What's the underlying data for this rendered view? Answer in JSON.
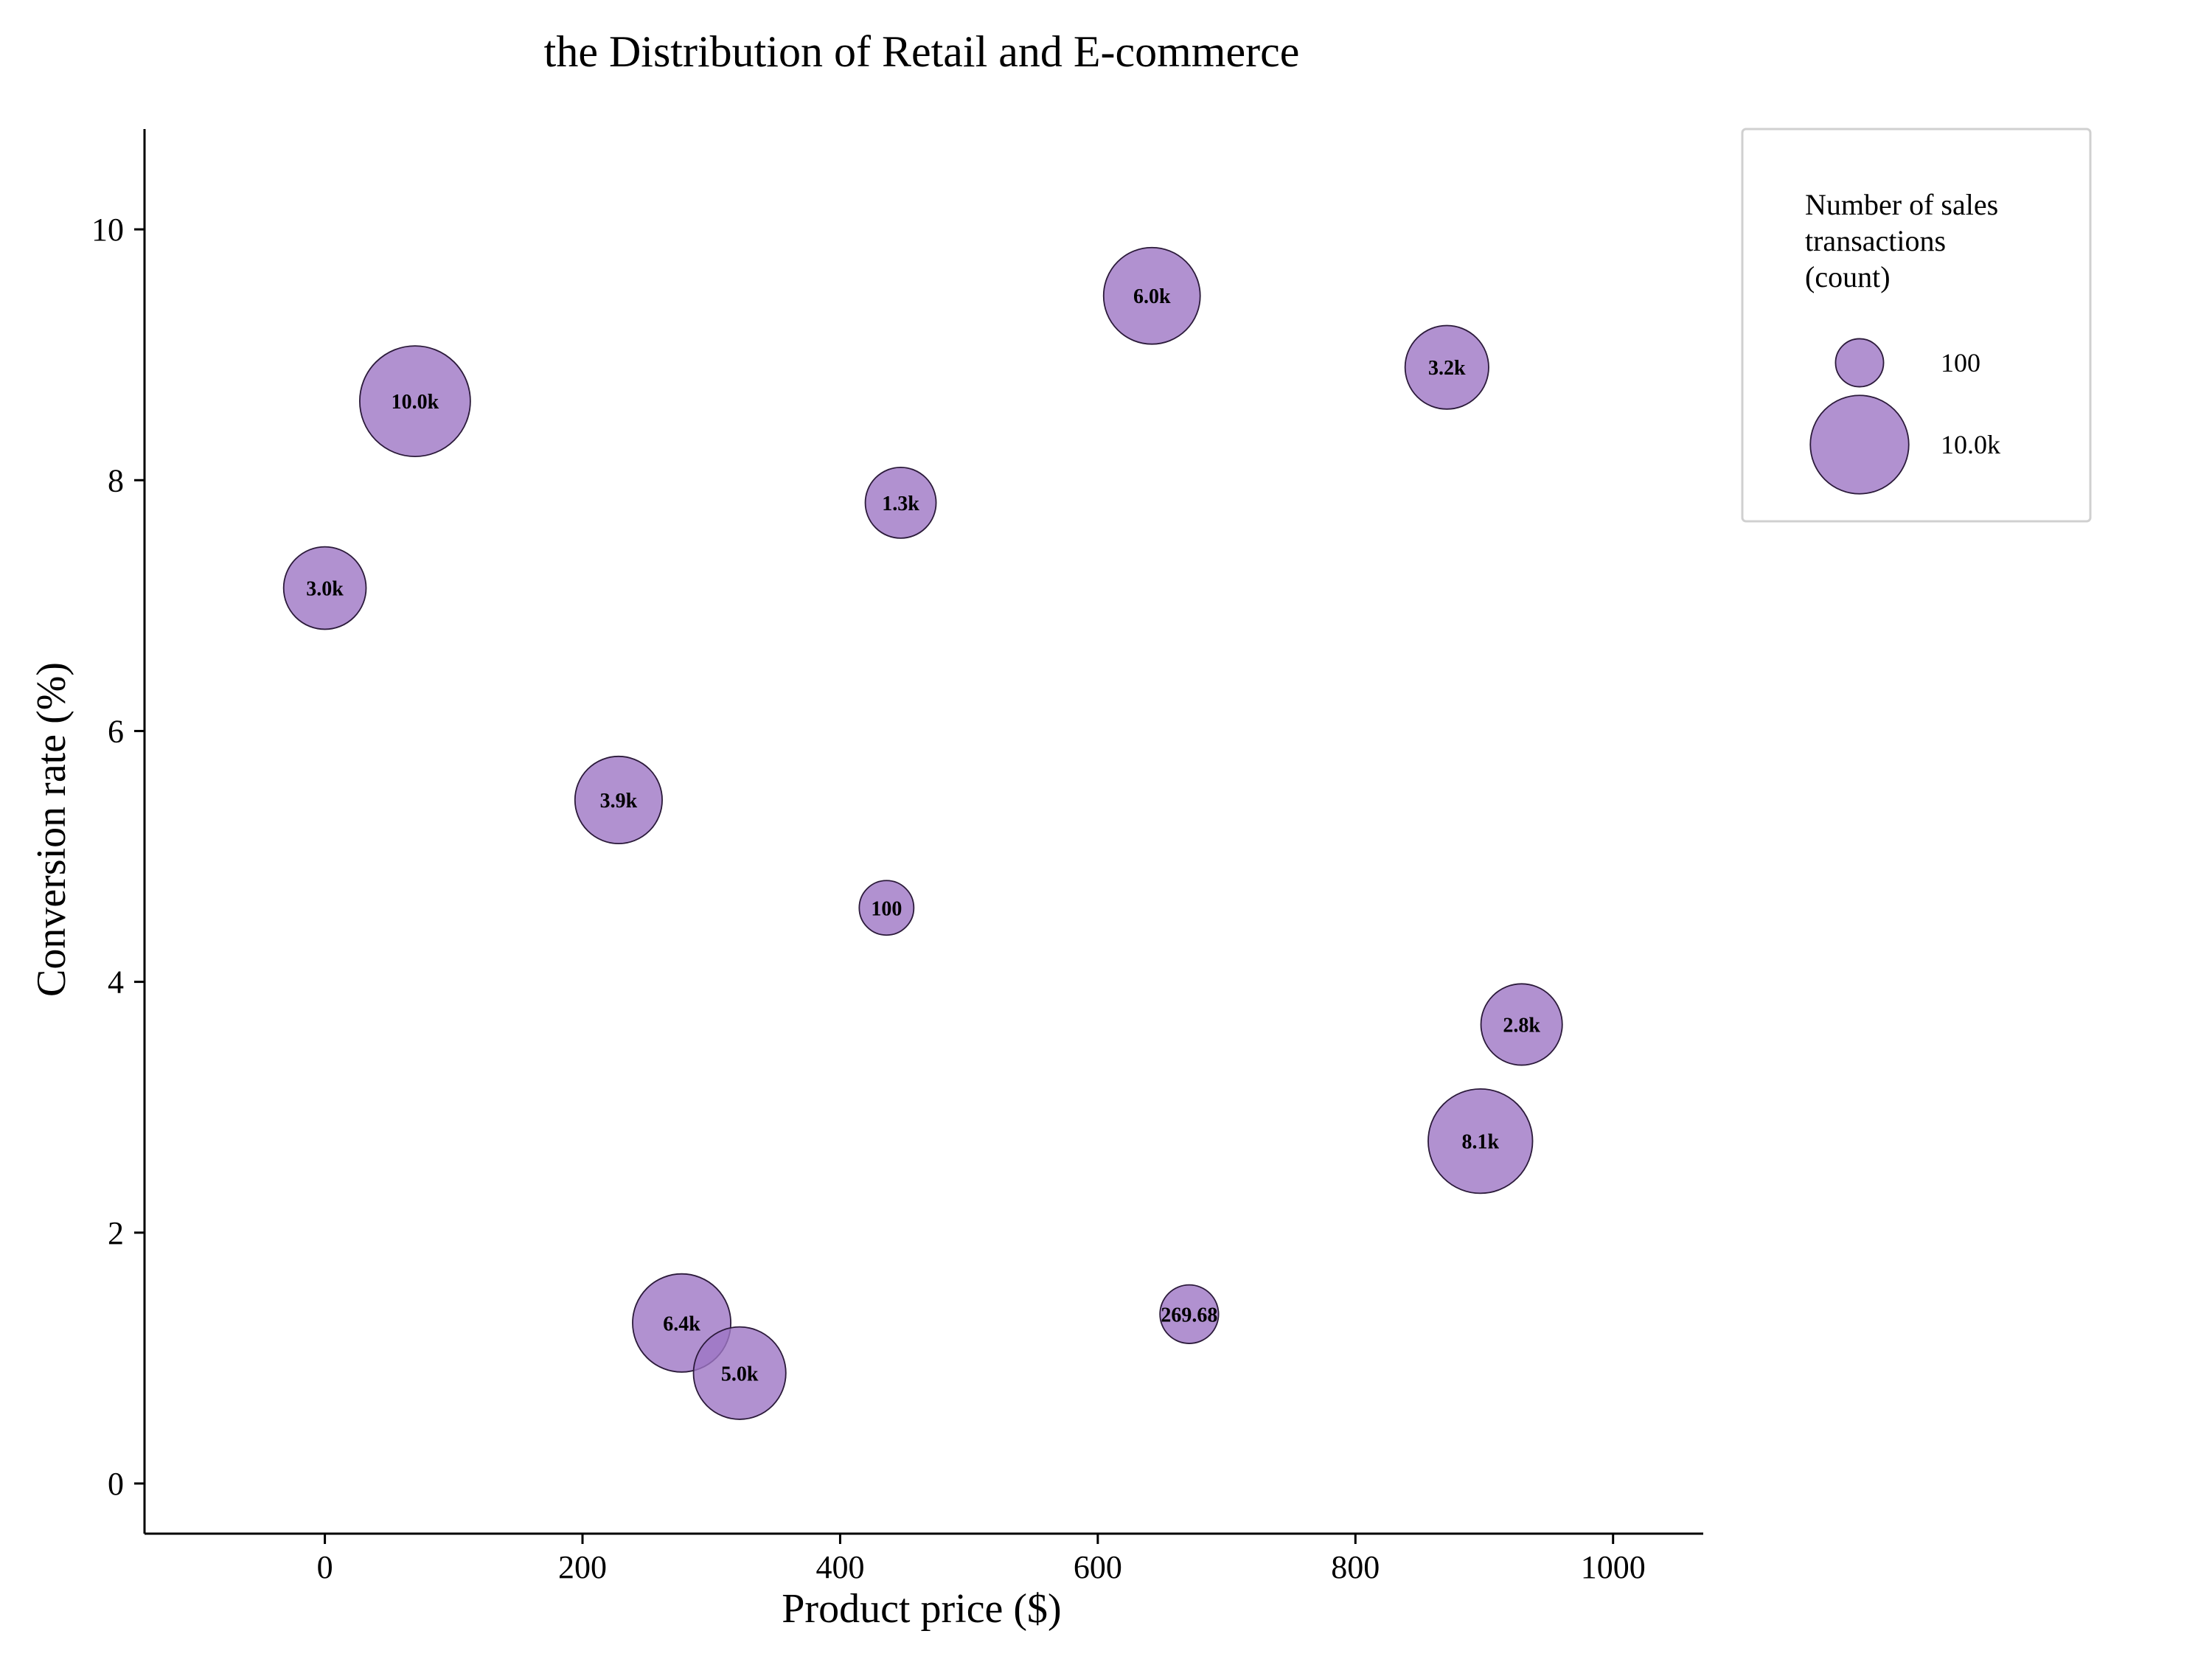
{
  "chart_data": {
    "type": "scatter",
    "title": "the Distribution of Retail and E-commerce",
    "xlabel": "Product price ($)",
    "ylabel": "Conversion rate (%)",
    "xlim": [
      -140,
      1070
    ],
    "ylim": [
      -0.4,
      10.8
    ],
    "xticks": [
      0,
      200,
      400,
      600,
      800,
      1000
    ],
    "yticks": [
      0,
      2,
      4,
      6,
      8,
      10
    ],
    "grid": false,
    "bubble_color": "#9d75c4",
    "size_variable": "Number of sales transactions (count)",
    "points": [
      {
        "x": 70,
        "y": 8.63,
        "size": 10000,
        "label": "10.0k"
      },
      {
        "x": 0,
        "y": 7.14,
        "size": 3000,
        "label": "3.0k"
      },
      {
        "x": 228,
        "y": 5.45,
        "size": 3900,
        "label": "3.9k"
      },
      {
        "x": 447,
        "y": 7.82,
        "size": 1300,
        "label": "1.3k"
      },
      {
        "x": 436,
        "y": 4.59,
        "size": 100,
        "label": "100"
      },
      {
        "x": 642,
        "y": 9.47,
        "size": 6000,
        "label": "6.0k"
      },
      {
        "x": 871,
        "y": 8.9,
        "size": 3200,
        "label": "3.2k"
      },
      {
        "x": 929,
        "y": 3.66,
        "size": 2800,
        "label": "2.8k"
      },
      {
        "x": 897,
        "y": 2.73,
        "size": 8100,
        "label": "8.1k"
      },
      {
        "x": 671,
        "y": 1.35,
        "size": 269.68,
        "label": "269.68"
      },
      {
        "x": 277,
        "y": 1.28,
        "size": 6400,
        "label": "6.4k"
      },
      {
        "x": 322,
        "y": 0.88,
        "size": 5000,
        "label": "5.0k"
      }
    ],
    "legend": {
      "placement": "top-right, outside plot",
      "title": "Number of sales transactions (count)",
      "title_lines": [
        "Number of sales",
        "transactions",
        "(count)"
      ],
      "entries": [
        {
          "label": "100",
          "size": 100
        },
        {
          "label": "10.0k",
          "size": 10000
        }
      ]
    }
  }
}
